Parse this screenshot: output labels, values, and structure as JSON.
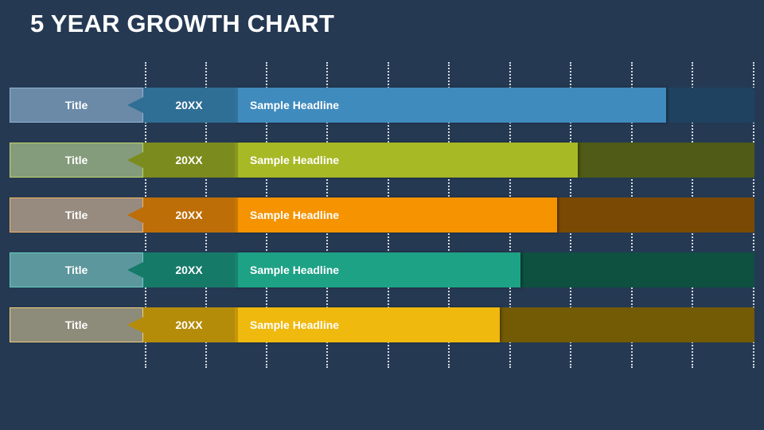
{
  "title": "5 YEAR GROWTH CHART",
  "chart_data": {
    "type": "bar",
    "rows": [
      {
        "title": "Title",
        "year": "20XX",
        "headline": "Sample Headline",
        "progress": 0.83,
        "colors": {
          "bar": "#3f8bbd",
          "year": "#2f6e95",
          "track": "#1f4260",
          "title_box": "#6a8aa8",
          "border": "#8fb4d3"
        }
      },
      {
        "title": "Title",
        "year": "20XX",
        "headline": "Sample Headline",
        "progress": 0.66,
        "colors": {
          "bar": "#a8b926",
          "year": "#7c8b1d",
          "track": "#4f5b16",
          "title_box": "#849c7b",
          "border": "#c1d46b"
        }
      },
      {
        "title": "Title",
        "year": "20XX",
        "headline": "Sample Headline",
        "progress": 0.62,
        "colors": {
          "bar": "#f59300",
          "year": "#bd6e07",
          "track": "#7a4a05",
          "title_box": "#978a7e",
          "border": "#f4b664"
        }
      },
      {
        "title": "Title",
        "year": "20XX",
        "headline": "Sample Headline",
        "progress": 0.55,
        "colors": {
          "bar": "#1ea286",
          "year": "#167a69",
          "track": "#0e5141",
          "title_box": "#5c979d",
          "border": "#66cdbf"
        }
      },
      {
        "title": "Title",
        "year": "20XX",
        "headline": "Sample Headline",
        "progress": 0.51,
        "colors": {
          "bar": "#f0b90d",
          "year": "#b58c0a",
          "track": "#735b05",
          "title_box": "#8d8b7a",
          "border": "#f2d07a"
        }
      }
    ]
  }
}
